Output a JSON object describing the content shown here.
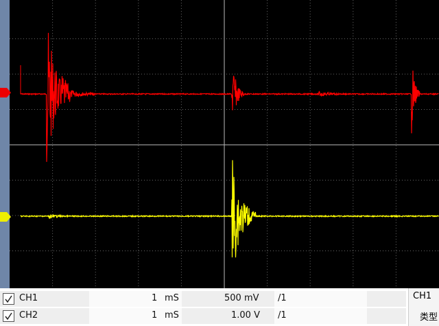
{
  "channels": [
    {
      "name": "CH1",
      "time_value": "1",
      "time_unit": "mS",
      "volts": "500 mV",
      "probe": "/1"
    },
    {
      "name": "CH2",
      "time_value": "1",
      "time_unit": "mS",
      "volts": "1.00 V",
      "probe": "/1"
    }
  ],
  "side_panel": {
    "title": "CH1",
    "field": "类型"
  }
}
